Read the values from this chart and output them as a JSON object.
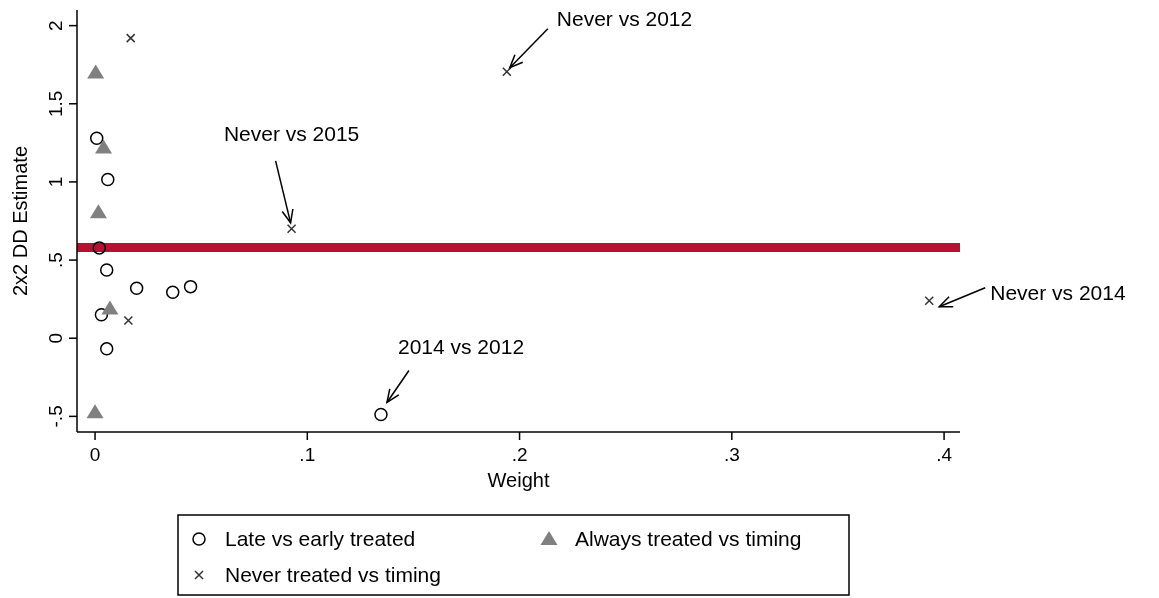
{
  "chart_data": {
    "type": "scatter",
    "xlabel": "Weight",
    "ylabel": "2x2 DD Estimate",
    "xlim": [
      -0.0085,
      0.4075
    ],
    "ylim": [
      -0.6,
      2.1
    ],
    "xticks": [
      0,
      {
        "value": 0.1,
        "label": ".1"
      },
      {
        "value": 0.2,
        "label": ".2"
      },
      {
        "value": 0.3,
        "label": ".3"
      },
      {
        "value": 0.4,
        "label": ".4"
      }
    ],
    "yticks": [
      {
        "value": -0.5,
        "label": "-.5"
      },
      0,
      {
        "value": 0.5,
        "label": ".5"
      },
      1,
      {
        "value": 1.5,
        "label": "1.5"
      },
      2
    ],
    "legend": "bottom",
    "series": [
      {
        "name": "Late vs early treated",
        "color": "#000000",
        "marker": "circle",
        "x": [
          0.0008,
          0.006,
          0.002,
          0.0055,
          0.0196,
          0.0366,
          0.045,
          0.003,
          0.0055,
          0.1347
        ],
        "values": [
          1.28,
          1.015,
          0.578,
          0.437,
          0.32,
          0.294,
          0.33,
          0.15,
          -0.068,
          -0.488
        ]
      },
      {
        "name": "Always treated vs timing",
        "color": "#808080",
        "marker": "triangle",
        "x": [
          0.0003,
          0.004,
          0.0016,
          0.007,
          0.0
        ],
        "values": [
          1.7,
          1.22,
          0.806,
          0.19,
          -0.473
        ]
      },
      {
        "name": "Never treated vs timing",
        "color": "#333333",
        "marker": "cross",
        "x": [
          0.0168,
          0.0157,
          0.0926,
          0.194,
          0.393
        ],
        "values": [
          1.92,
          0.113,
          0.7,
          1.705,
          0.24
        ]
      }
    ],
    "ref_lines": [
      {
        "axis": "y",
        "value": 0.58,
        "color": "#b80f32"
      }
    ],
    "annotations": [
      {
        "text": "Never vs 2012",
        "x": 0.194,
        "y": 1.705
      },
      {
        "text": "Never vs 2015",
        "x": 0.0926,
        "y": 0.7
      },
      {
        "text": "Never vs 2014",
        "x": 0.393,
        "y": 0.24
      },
      {
        "text": "2014 vs 2012",
        "x": 0.1347,
        "y": -0.488
      }
    ]
  }
}
